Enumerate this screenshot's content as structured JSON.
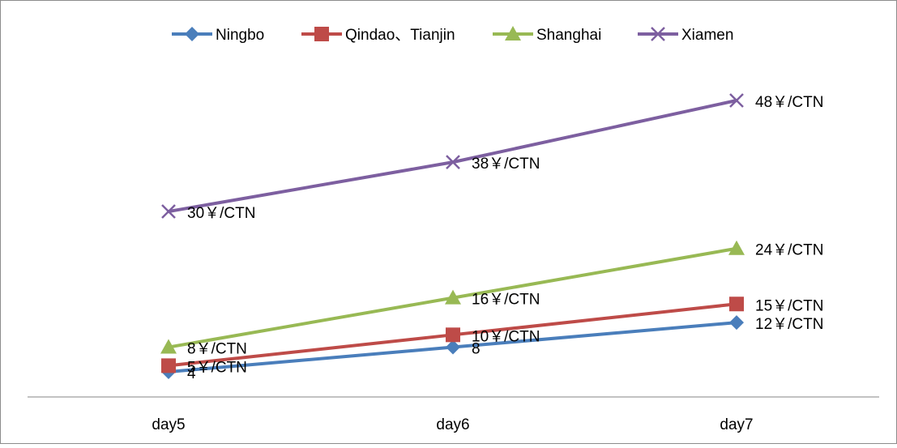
{
  "chart_data": {
    "type": "line",
    "title": "",
    "xlabel": "",
    "ylabel": "",
    "categories": [
      "day5",
      "day6",
      "day7"
    ],
    "ylim": [
      0,
      50
    ],
    "grid": false,
    "legend_position": "top",
    "series": [
      {
        "name": "Ningbo",
        "values": [
          4,
          8,
          12
        ],
        "labels": [
          "4",
          "8",
          "12￥/CTN"
        ],
        "color": "#4A7EBB",
        "marker": "diamond"
      },
      {
        "name": "Qindao、Tianjin",
        "values": [
          5,
          10,
          15
        ],
        "labels": [
          "5￥/CTN",
          "10￥/CTN",
          "15￥/CTN"
        ],
        "color": "#BE4B48",
        "marker": "square"
      },
      {
        "name": "Shanghai",
        "values": [
          8,
          16,
          24
        ],
        "labels": [
          "8￥/CTN",
          "16￥/CTN",
          "24￥/CTN"
        ],
        "color": "#98B954",
        "marker": "triangle"
      },
      {
        "name": "Xiamen",
        "values": [
          30,
          38,
          48
        ],
        "labels": [
          "30￥/CTN",
          "38￥/CTN",
          "48￥/CTN"
        ],
        "color": "#7D5FA0",
        "marker": "x"
      }
    ]
  }
}
